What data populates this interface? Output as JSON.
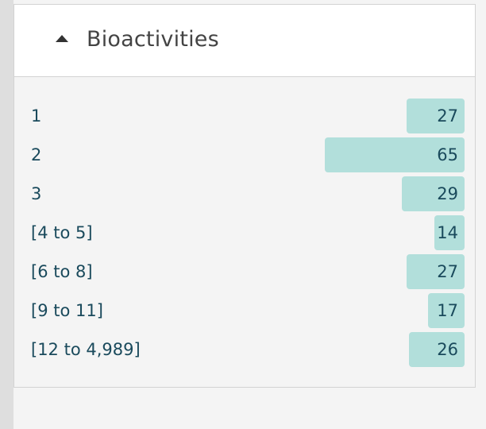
{
  "panel": {
    "title": "Bioactivities",
    "expanded": true,
    "toggle_icon": "caret-up-icon"
  },
  "bar_color": "#b2dfdb",
  "facets": [
    {
      "label": "1",
      "count": "27",
      "value": 27
    },
    {
      "label": "2",
      "count": "65",
      "value": 65
    },
    {
      "label": "3",
      "count": "29",
      "value": 29
    },
    {
      "label": "[4 to 5]",
      "count": "14",
      "value": 14
    },
    {
      "label": "[6 to 8]",
      "count": "27",
      "value": 27
    },
    {
      "label": "[9 to 11]",
      "count": "17",
      "value": 17
    },
    {
      "label": "[12 to 4,989]",
      "count": "26",
      "value": 26
    }
  ]
}
